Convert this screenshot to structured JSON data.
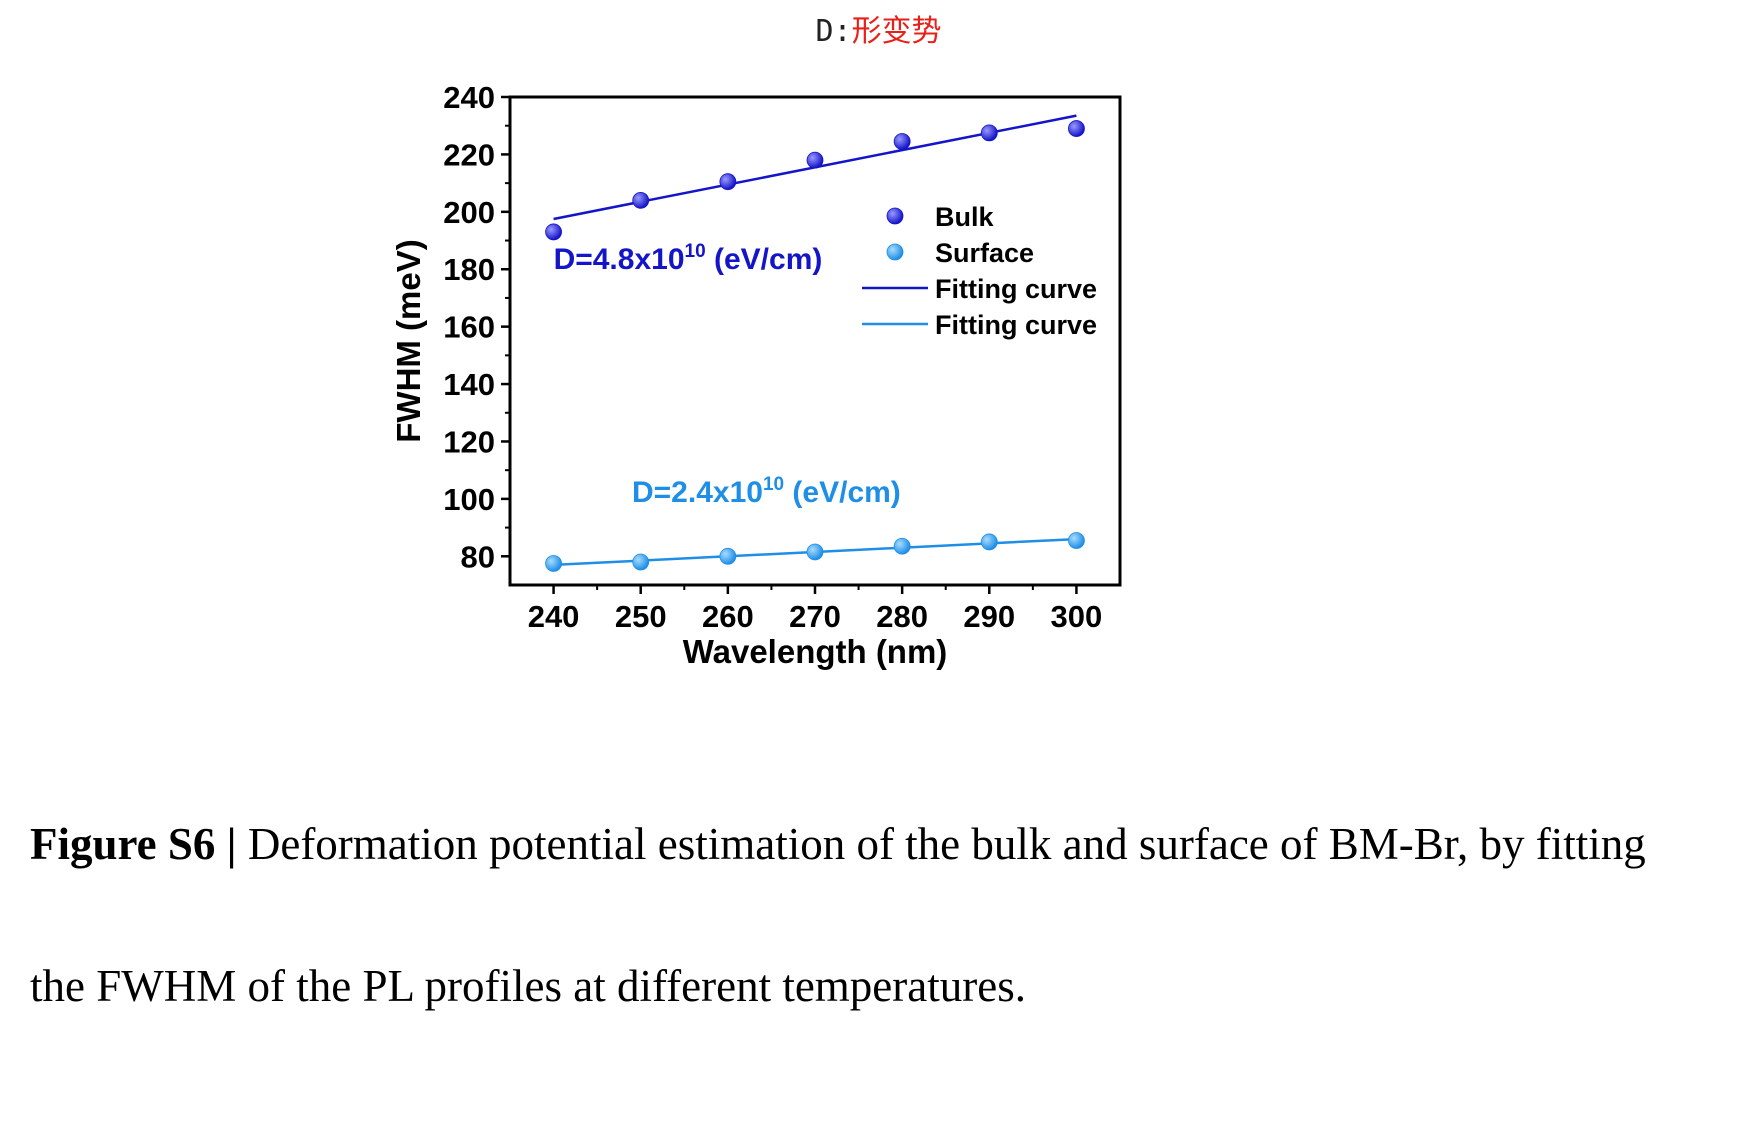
{
  "header": {
    "prefix": "D:",
    "note": "形变势"
  },
  "chart_data": {
    "type": "scatter",
    "xlabel": "Wavelength (nm)",
    "ylabel": "FWHM (meV)",
    "xlim": [
      235,
      305
    ],
    "ylim": [
      70,
      240
    ],
    "xticks": [
      240,
      250,
      260,
      270,
      280,
      290,
      300
    ],
    "yticks": [
      80,
      100,
      120,
      140,
      160,
      180,
      200,
      220,
      240
    ],
    "legend_position": "center-right",
    "series": [
      {
        "name": "Bulk",
        "kind": "points",
        "color": "#1414c8",
        "x": [
          240,
          250,
          260,
          270,
          280,
          290,
          300
        ],
        "y": [
          193,
          204,
          210.5,
          218,
          224.5,
          227.5,
          229
        ]
      },
      {
        "name": "Surface",
        "kind": "points",
        "color": "#1e8ee6",
        "x": [
          240,
          250,
          260,
          270,
          280,
          290,
          300
        ],
        "y": [
          77.5,
          78,
          80,
          81.5,
          83.5,
          85,
          85.5
        ]
      },
      {
        "name": "Fitting curve",
        "kind": "line",
        "color": "#1414c8",
        "x": [
          240,
          300
        ],
        "y": [
          197.5,
          233.5
        ]
      },
      {
        "name": "Fitting curve",
        "kind": "line",
        "color": "#1e8ee6",
        "x": [
          240,
          300
        ],
        "y": [
          77,
          86
        ]
      }
    ],
    "annotations": [
      {
        "main": "D=4.8x10",
        "sup": "10",
        "tail": " (eV/cm)",
        "color": "#1414c8",
        "x": 240,
        "y": 180
      },
      {
        "main": "D=2.4x10",
        "sup": "10",
        "tail": " (eV/cm)",
        "color": "#1e8ee6",
        "x": 249,
        "y": 99
      }
    ]
  },
  "caption": {
    "label": "Figure S6 |",
    "line1": "Deformation potential estimation of the bulk and surface of BM-Br, by fitting",
    "line2": "the FWHM of the PL profiles at different temperatures."
  }
}
